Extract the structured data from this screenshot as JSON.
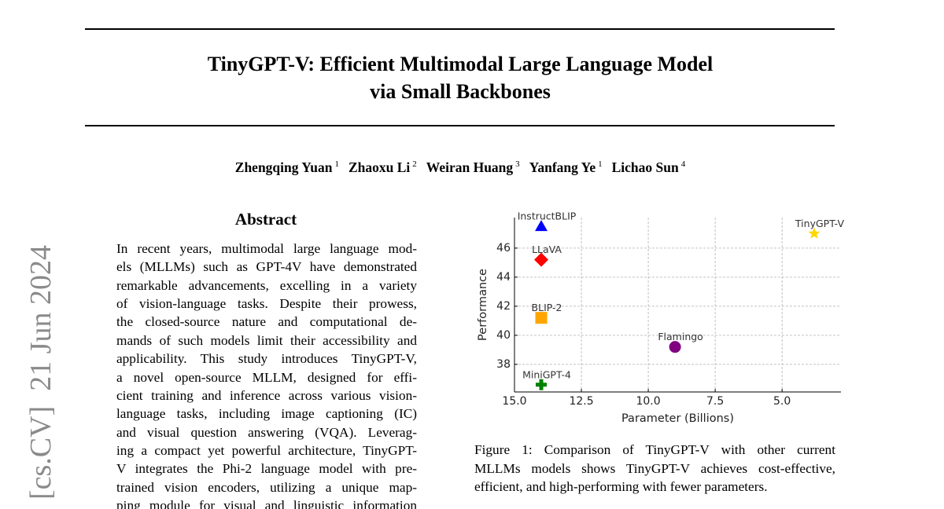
{
  "stamp": "[cs.CV]  21 Jun 2024",
  "header": {
    "title_lines": [
      "TinyGPT-V: Efficient Multimodal Large Language Model",
      "via Small Backbones"
    ]
  },
  "authors": [
    {
      "name": "Zhengqing Yuan",
      "affiliation": "1"
    },
    {
      "name": "Zhaoxu Li",
      "affiliation": "2"
    },
    {
      "name": "Weiran Huang",
      "affiliation": "3"
    },
    {
      "name": "Yanfang Ye",
      "affiliation": "1"
    },
    {
      "name": "Lichao Sun",
      "affiliation": "4"
    }
  ],
  "abstract": {
    "heading": "Abstract",
    "lines": [
      "In recent years, multimodal large language mod-",
      "els (MLLMs) such as GPT-4V have demonstrated",
      "remarkable advancements, excelling in a variety",
      "of vision-language tasks. Despite their prowess,",
      "the closed-source nature and computational de-",
      "mands of such models limit their accessibility and",
      "applicability. This study introduces TinyGPT-V,",
      "a novel open-source MLLM, designed for effi-",
      "cient training and inference across various vision-",
      "language tasks, including image captioning (IC)",
      "and visual question answering (VQA). Leverag-",
      "ing a compact yet powerful architecture, TinyGPT-",
      "V integrates the Phi-2 language model with pre-",
      "trained vision encoders, utilizing a unique map-",
      "ping module for visual and linguistic information"
    ]
  },
  "chart_data": {
    "type": "scatter",
    "x_label": "Parameter (Billions)",
    "y_label": "Performance",
    "xlim": [
      15,
      2.8
    ],
    "ylim": [
      36.1,
      48.1
    ],
    "xticks": [
      {
        "value": 15,
        "label": "15.0"
      },
      12.5,
      {
        "value": 10,
        "label": "10.0"
      },
      7.5,
      {
        "value": 5,
        "label": "5.0"
      }
    ],
    "yticks": [
      38,
      40,
      42,
      44,
      46
    ],
    "grid": true,
    "series": [
      {
        "name": "InstructBLIP",
        "color": "#0000ff",
        "marker": "triangle",
        "x": [
          14
        ],
        "values": [
          47.5
        ]
      },
      {
        "name": "LLaVA",
        "color": "#ff0000",
        "marker": "diamond",
        "x": [
          14
        ],
        "values": [
          45.2
        ]
      },
      {
        "name": "BLIP-2",
        "color": "#ffa500",
        "marker": "square",
        "x": [
          14
        ],
        "values": [
          41.2
        ]
      },
      {
        "name": "Flamingo",
        "color": "#800080",
        "marker": "circle",
        "x": [
          9
        ],
        "values": [
          39.2
        ]
      },
      {
        "name": "MiniGPT-4",
        "color": "#008000",
        "marker": "plus",
        "x": [
          14
        ],
        "values": [
          36.6
        ]
      },
      {
        "name": "TinyGPT-V",
        "color": "#ffd700",
        "marker": "star",
        "x": [
          3.8
        ],
        "values": [
          47.0
        ]
      }
    ]
  },
  "figure": {
    "caption_lines": [
      "Figure 1:  Comparison of TinyGPT-V with other current",
      "MLLMs models shows TinyGPT-V achieves cost-effective,",
      "efficient, and high-performing with fewer parameters."
    ]
  }
}
